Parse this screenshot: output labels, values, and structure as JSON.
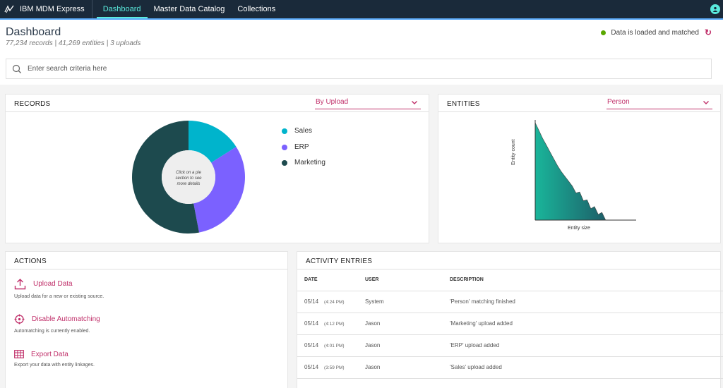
{
  "app": {
    "brand": "IBM MDM Express"
  },
  "nav": {
    "tabs": [
      {
        "label": "Dashboard",
        "active": true
      },
      {
        "label": "Master Data Catalog",
        "active": false
      },
      {
        "label": "Collections",
        "active": false
      }
    ]
  },
  "header": {
    "title": "Dashboard",
    "subtitle": "77,234 records | 41,269 entities | 3 uploads",
    "status": "Data is loaded and matched",
    "status_color": "#5aa700"
  },
  "search": {
    "placeholder": "Enter search criteria here"
  },
  "records": {
    "title": "RECORDS",
    "dropdown": "By Upload",
    "center_text": "Click on a pie section to see more details",
    "legend": [
      {
        "label": "Sales",
        "color": "#00b4cc"
      },
      {
        "label": "ERP",
        "color": "#7b61ff"
      },
      {
        "label": "Marketing",
        "color": "#1d4a4e"
      }
    ]
  },
  "chart_data": [
    {
      "type": "pie",
      "categories": [
        "Sales",
        "ERP",
        "Marketing"
      ],
      "values": [
        16,
        31,
        53
      ],
      "title": "",
      "colors": [
        "#00b4cc",
        "#7b61ff",
        "#1d4a4e"
      ]
    },
    {
      "type": "area",
      "title": "",
      "xlabel": "Entity size",
      "ylabel": "Entity count",
      "x": [
        0,
        1,
        2,
        3,
        4,
        5,
        6,
        7,
        8,
        9,
        10,
        11,
        12,
        13,
        14,
        15,
        16,
        17,
        18,
        19,
        20
      ],
      "y": [
        100,
        92,
        84,
        77,
        70,
        63,
        56,
        50,
        45,
        40,
        35,
        30,
        26,
        22,
        18,
        14,
        11,
        8,
        5,
        2,
        0
      ],
      "grid": false
    }
  ],
  "entities": {
    "title": "ENTITIES",
    "dropdown": "Person"
  },
  "actions": {
    "title": "ACTIONS",
    "items": [
      {
        "label": "Upload Data",
        "desc": "Upload data for a new or existing source.",
        "icon": "upload-icon"
      },
      {
        "label": "Disable Automatching",
        "desc": "Automatching is currently enabled.",
        "icon": "crosshair-icon"
      },
      {
        "label": "Export Data",
        "desc": "Export your data with entity linkages.",
        "icon": "table-icon"
      }
    ]
  },
  "activity": {
    "title": "ACTIVITY ENTRIES",
    "columns": [
      "DATE",
      "USER",
      "DESCRIPTION"
    ],
    "rows": [
      {
        "date": "05/14",
        "time": "(4:24 PM)",
        "user": "System",
        "desc": "'Person' matching finished"
      },
      {
        "date": "05/14",
        "time": "(4:12 PM)",
        "user": "Jason",
        "desc": "'Marketing' upload added"
      },
      {
        "date": "05/14",
        "time": "(4:01 PM)",
        "user": "Jason",
        "desc": "'ERP' upload added"
      },
      {
        "date": "05/14",
        "time": "(3:59 PM)",
        "user": "Jason",
        "desc": "'Sales' upload added"
      }
    ]
  }
}
